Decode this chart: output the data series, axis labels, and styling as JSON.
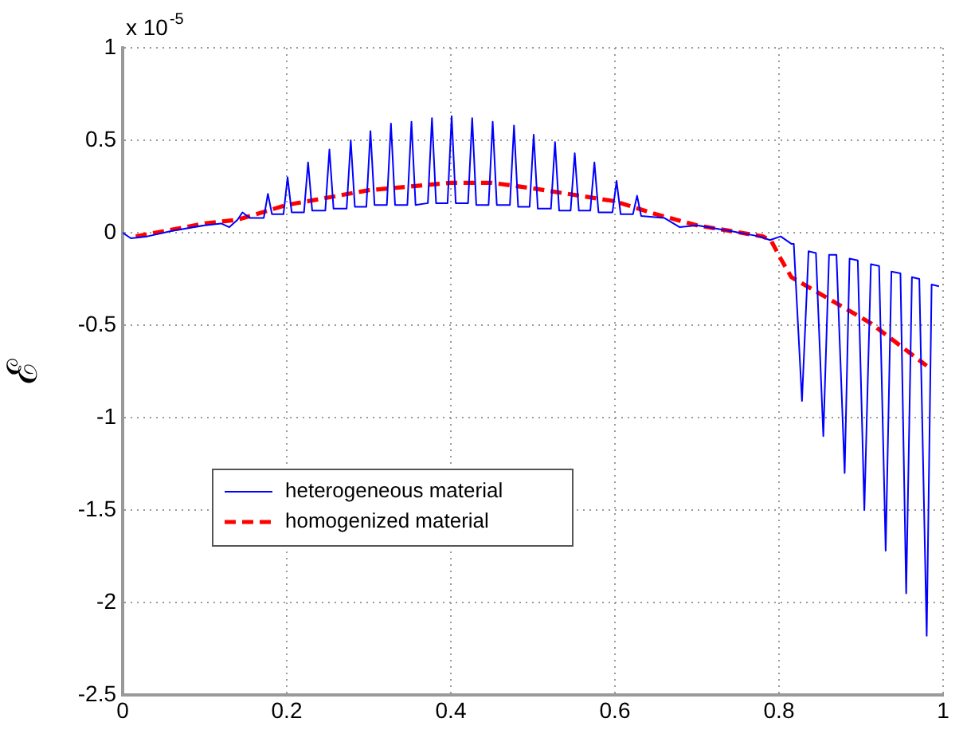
{
  "chart_data": {
    "type": "line",
    "ylabel": "ℰ",
    "annotations": [
      "x 10$^{-5}$"
    ],
    "xlim": [
      0,
      1
    ],
    "xticks": [
      0,
      0.2,
      0.4,
      0.6,
      0.8,
      1
    ],
    "ylim": [
      -2.5,
      1
    ],
    "yticks": [
      -2.5,
      -2,
      -1.5,
      -1,
      -0.5,
      0,
      0.5,
      1
    ],
    "grid": true,
    "legend": "bottom left",
    "marker": "none",
    "series": [
      {
        "name": "heterogeneous material",
        "color": "#0000ff",
        "line_style": "solid",
        "x": [
          0,
          0.01,
          0.03,
          0.06,
          0.1,
          0.12,
          0.13,
          0.14,
          0.146,
          0.155,
          0.165,
          0.172,
          0.177,
          0.182,
          0.196,
          0.201,
          0.206,
          0.221,
          0.226,
          0.231,
          0.247,
          0.252,
          0.257,
          0.273,
          0.278,
          0.283,
          0.297,
          0.302,
          0.307,
          0.322,
          0.327,
          0.332,
          0.347,
          0.352,
          0.357,
          0.372,
          0.377,
          0.382,
          0.396,
          0.401,
          0.406,
          0.421,
          0.426,
          0.431,
          0.446,
          0.451,
          0.456,
          0.472,
          0.477,
          0.482,
          0.496,
          0.501,
          0.506,
          0.522,
          0.527,
          0.532,
          0.546,
          0.551,
          0.556,
          0.57,
          0.575,
          0.58,
          0.597,
          0.602,
          0.607,
          0.622,
          0.627,
          0.632,
          0.66,
          0.679,
          0.7,
          0.74,
          0.776,
          0.789,
          0.802,
          0.815,
          0.818,
          0.828,
          0.836,
          0.845,
          0.854,
          0.861,
          0.87,
          0.88,
          0.886,
          0.896,
          0.904,
          0.912,
          0.922,
          0.93,
          0.937,
          0.948,
          0.955,
          0.962,
          0.971,
          0.98,
          0.986,
          0.995
        ],
        "values": [
          0,
          -0.03,
          -0.02,
          0.01,
          0.04,
          0.05,
          0.03,
          0.07,
          0.11,
          0.08,
          0.08,
          0.08,
          0.21,
          0.1,
          0.1,
          0.3,
          0.11,
          0.11,
          0.38,
          0.12,
          0.12,
          0.45,
          0.13,
          0.13,
          0.5,
          0.14,
          0.14,
          0.55,
          0.15,
          0.15,
          0.59,
          0.15,
          0.15,
          0.6,
          0.15,
          0.16,
          0.62,
          0.16,
          0.16,
          0.63,
          0.16,
          0.16,
          0.62,
          0.15,
          0.15,
          0.6,
          0.15,
          0.15,
          0.58,
          0.14,
          0.14,
          0.53,
          0.13,
          0.13,
          0.49,
          0.12,
          0.12,
          0.43,
          0.12,
          0.12,
          0.38,
          0.11,
          0.11,
          0.28,
          0.1,
          0.1,
          0.2,
          0.09,
          0.08,
          0.03,
          0.04,
          0.01,
          -0.02,
          -0.04,
          -0.02,
          -0.06,
          -0.06,
          -0.91,
          -0.1,
          -0.11,
          -1.1,
          -0.12,
          -0.12,
          -1.3,
          -0.14,
          -0.15,
          -1.5,
          -0.17,
          -0.18,
          -1.72,
          -0.21,
          -0.22,
          -1.95,
          -0.24,
          -0.25,
          -2.18,
          -0.28,
          -0.29
        ]
      },
      {
        "name": "homogenized material",
        "color": "#ff0000",
        "line_style": "dashed",
        "x": [
          0.016,
          0.1,
          0.14,
          0.2,
          0.3,
          0.4,
          0.45,
          0.5,
          0.6,
          0.65,
          0.7,
          0.78,
          0.79,
          0.802,
          0.815,
          0.912,
          0.98
        ],
        "values": [
          -0.02,
          0.05,
          0.07,
          0.15,
          0.23,
          0.27,
          0.27,
          0.24,
          0.17,
          0.1,
          0.04,
          -0.02,
          -0.04,
          -0.14,
          -0.24,
          -0.49,
          -0.72
        ]
      }
    ]
  }
}
